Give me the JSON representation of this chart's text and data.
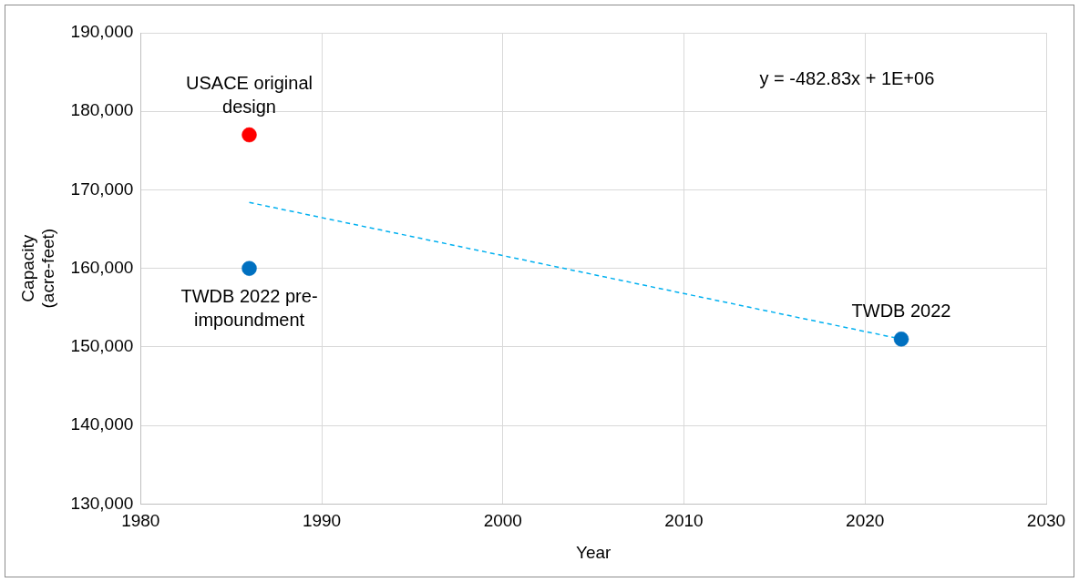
{
  "chart_data": {
    "type": "scatter",
    "xlabel": "Year",
    "ylabel": "Capacity\n(acre-feet)",
    "series": [
      {
        "type": "scatter",
        "color": "#ff0000",
        "x": [
          "1986"
        ],
        "values": [
          177000
        ]
      },
      {
        "type": "scatter",
        "color": "#0070c0",
        "x": [
          "1986",
          "2022"
        ],
        "values": [
          160000,
          151000
        ]
      },
      {
        "type": "line",
        "color": "#00b0f0",
        "line_style": "dashed",
        "marker": "none",
        "x": [
          "1986",
          "2022"
        ],
        "values": [
          168400,
          151000
        ]
      }
    ],
    "annotations": [
      {
        "text": "USACE original\ndesign",
        "x": "1986",
        "y": 177000
      },
      {
        "text": "TWDB 2022 pre-\nimpoundment",
        "x": "1986",
        "y": 160000
      },
      {
        "text": "TWDB 2022",
        "x": "2022",
        "y": 151000
      },
      "y = -482.83x + 1E+06"
    ],
    "xlim": [
      "1980",
      "2030"
    ],
    "xticks": [
      "1980",
      "1990",
      "2000",
      "2010",
      "2020",
      "2030"
    ],
    "ylim": [
      130000,
      190000
    ],
    "yticks": [
      {
        "value": 130000,
        "label": "130,000"
      },
      {
        "value": 140000,
        "label": "140,000"
      },
      {
        "value": 150000,
        "label": "150,000"
      },
      {
        "value": 160000,
        "label": "160,000"
      },
      {
        "value": 170000,
        "label": "170,000"
      },
      {
        "value": 180000,
        "label": "180,000"
      },
      {
        "value": 190000,
        "label": "190,000"
      }
    ],
    "grid": true,
    "legend": false,
    "marker": "circle"
  }
}
